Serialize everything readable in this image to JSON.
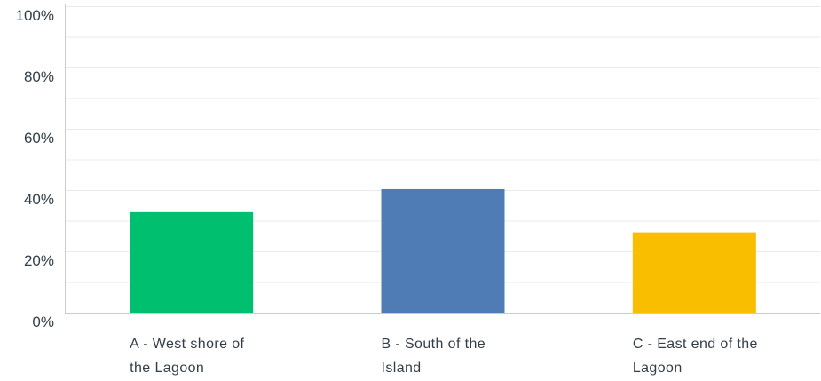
{
  "chart_data": {
    "type": "bar",
    "categories": [
      [
        "A - West shore of",
        "the Lagoon"
      ],
      [
        "B - South of the",
        "Island"
      ],
      [
        "C - East end of the",
        "Lagoon"
      ]
    ],
    "values": [
      32.8,
      40.3,
      26.2
    ],
    "colors": [
      "#00bf6f",
      "#507cb6",
      "#f9be00"
    ],
    "ylim": [
      0,
      100
    ],
    "yticks": [
      0,
      20,
      40,
      60,
      80,
      100
    ],
    "ytick_labels": [
      "0%",
      "20%",
      "40%",
      "60%",
      "80%",
      "100%"
    ],
    "minor_gridlines": [
      10,
      30,
      50,
      70,
      90
    ],
    "grid": true,
    "title": "",
    "xlabel": "",
    "ylabel": ""
  }
}
